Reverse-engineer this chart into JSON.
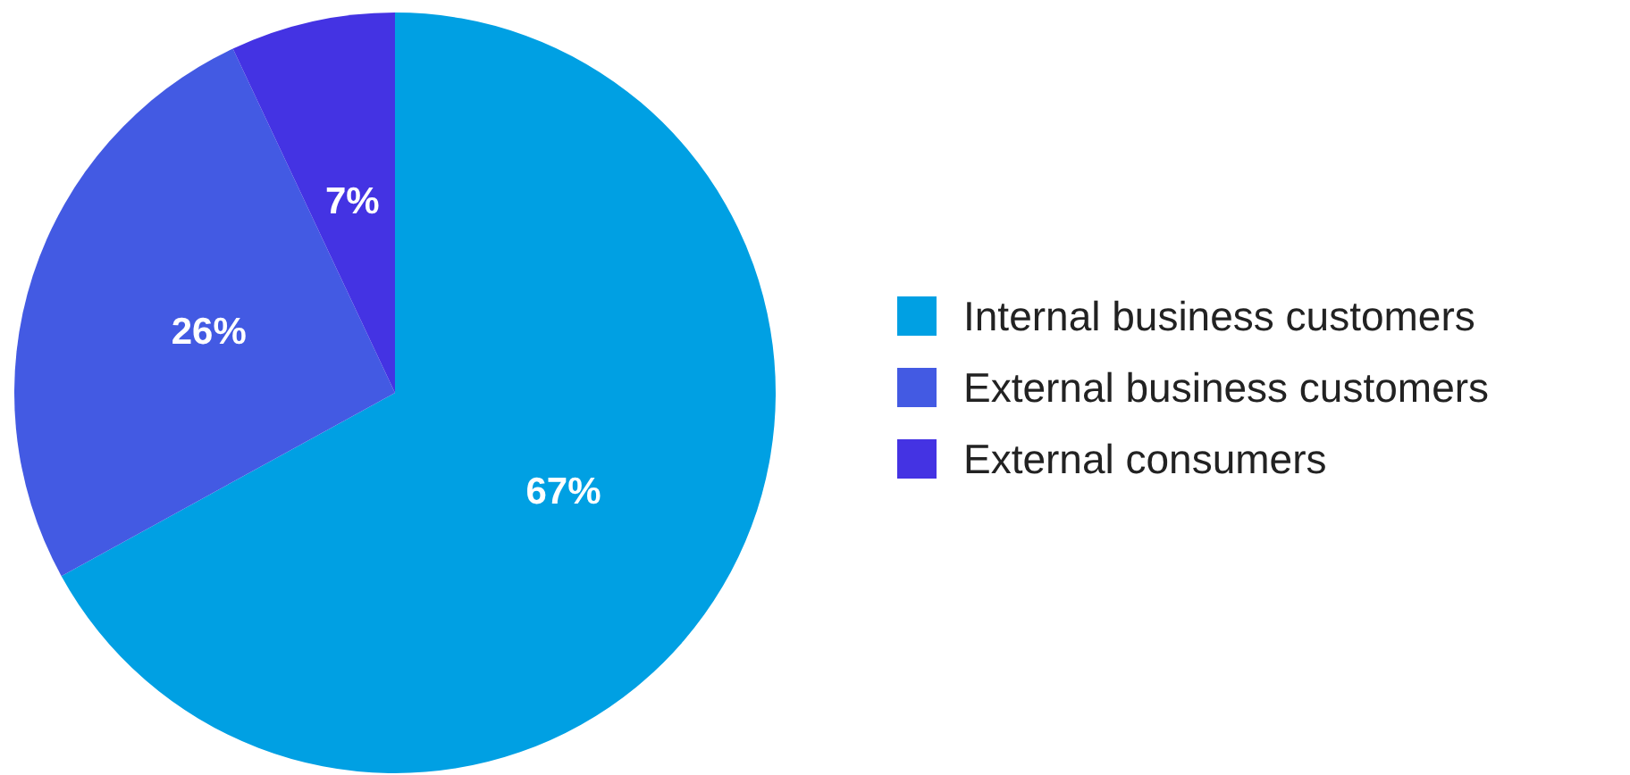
{
  "chart_data": {
    "type": "pie",
    "categories": [
      "Internal business customers",
      "External business customers",
      "External consumers"
    ],
    "values": [
      67,
      26,
      7
    ],
    "colors": [
      "#00a0e3",
      "#435ae3",
      "#4433e3"
    ],
    "value_labels": [
      "67%",
      "26%",
      "7%"
    ],
    "legend": "right"
  }
}
